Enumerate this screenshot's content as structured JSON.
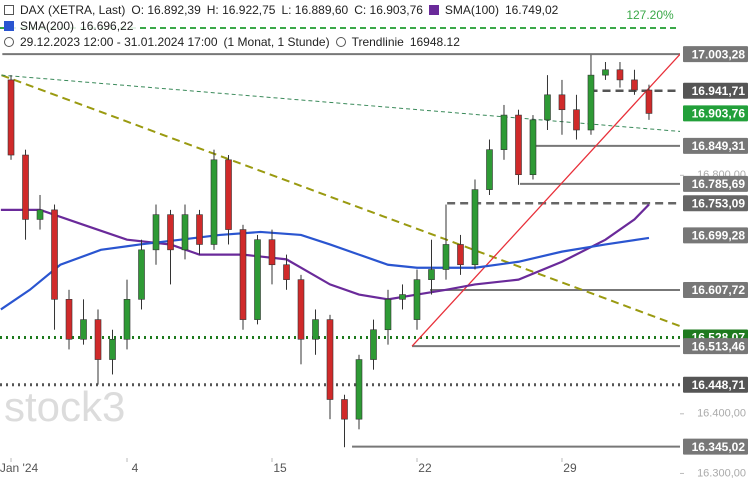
{
  "header": {
    "instrument": "DAX (XETRA, Last)",
    "open": "O: 16.892,39",
    "high": "H: 16.922,75",
    "low": "L: 16.889,60",
    "close": "C: 16.903,76",
    "sma100_name": "SMA(100)",
    "sma100_value": "16.749,02",
    "sma200_name": "SMA(200)",
    "sma200_value": "16.696,22",
    "range": "29.12.2023 12:00 - 31.01.2024 17:00",
    "interval": "(1 Monat, 1 Stunde)",
    "trend_name": "Trendlinie",
    "trend_value": "16948.12"
  },
  "watermark": "stock3",
  "chart_data": {
    "type": "candlestick",
    "x": [
      0,
      0.5,
      1,
      1.5,
      2,
      2.5,
      3,
      3.5,
      4,
      4.5,
      5,
      5.5,
      6,
      6.5,
      7,
      7.5,
      8,
      8.5,
      9,
      9.5,
      10,
      10.5,
      11,
      11.5,
      12,
      12.5,
      13,
      13.5,
      14,
      14.5,
      15,
      15.5,
      16,
      16.5,
      17,
      17.5,
      18,
      18.5,
      19,
      19.5,
      20,
      20.5,
      21,
      21.5,
      22
    ],
    "open": [
      16960,
      16834,
      16726,
      16742,
      16592,
      16525,
      16558,
      16491,
      16525,
      16592,
      16675,
      16734,
      16675,
      16734,
      16684,
      16826,
      16709,
      16558,
      16692,
      16650,
      16625,
      16525,
      16558,
      16424,
      16391,
      16491,
      16541,
      16592,
      16558,
      16625,
      16642,
      16684,
      16650,
      16776,
      16843,
      16901,
      16801,
      16893,
      16935,
      16910,
      16876,
      16968,
      16977,
      16960,
      16943
    ],
    "high": [
      16968,
      16843,
      16767,
      16751,
      16608,
      16592,
      16575,
      16541,
      16625,
      16692,
      16751,
      16742,
      16751,
      16742,
      16843,
      16834,
      16717,
      16700,
      16709,
      16667,
      16633,
      16575,
      16566,
      16432,
      16499,
      16558,
      16608,
      16617,
      16642,
      16692,
      16751,
      16700,
      16793,
      16860,
      16918,
      16910,
      16901,
      16968,
      16960,
      16935,
      17002,
      16990,
      16990,
      16977,
      16952
    ],
    "low": [
      16826,
      16692,
      16709,
      16541,
      16508,
      16516,
      16449,
      16466,
      16508,
      16575,
      16650,
      16617,
      16659,
      16667,
      16675,
      16684,
      16541,
      16550,
      16617,
      16608,
      16483,
      16499,
      16391,
      16344,
      16374,
      16474,
      16516,
      16575,
      16541,
      16600,
      16625,
      16633,
      16642,
      16767,
      16826,
      16784,
      16793,
      16876,
      16868,
      16860,
      16868,
      16960,
      16947,
      16935,
      16893
    ],
    "close": [
      16834,
      16726,
      16742,
      16592,
      16525,
      16558,
      16491,
      16525,
      16592,
      16675,
      16734,
      16675,
      16734,
      16684,
      16826,
      16709,
      16558,
      16692,
      16650,
      16625,
      16525,
      16558,
      16424,
      16391,
      16491,
      16541,
      16592,
      16600,
      16625,
      16642,
      16684,
      16650,
      16776,
      16843,
      16901,
      16801,
      16893,
      16935,
      16910,
      16876,
      16968,
      16977,
      16960,
      16943,
      16903.76
    ],
    "up_color": "#2e9a35",
    "down_color": "#d02a2a",
    "series": [
      {
        "name": "SMA(100)",
        "color": "#6a2a9a",
        "x": [
          -0.35,
          1,
          2.5,
          4,
          5.5,
          6.5,
          8,
          9.5,
          10,
          11,
          12,
          13,
          14,
          15,
          16,
          17.5,
          19,
          20.5,
          21.5,
          22
        ],
        "values": [
          16742,
          16742,
          16717,
          16692,
          16684,
          16667,
          16667,
          16659,
          16645,
          16617,
          16600,
          16592,
          16600,
          16608,
          16617,
          16625,
          16655,
          16692,
          16726,
          16751
        ]
      },
      {
        "name": "SMA(200)",
        "color": "#2a55d0",
        "x": [
          -0.35,
          0.65,
          1.7,
          3.1,
          4.45,
          5.85,
          7.2,
          8.6,
          10,
          11,
          12,
          13,
          14,
          15,
          16,
          17.5,
          19,
          20.5,
          22
        ],
        "values": [
          16575,
          16608,
          16650,
          16675,
          16684,
          16692,
          16700,
          16705,
          16700,
          16684,
          16667,
          16650,
          16645,
          16645,
          16645,
          16655,
          16672,
          16684,
          16695
        ]
      }
    ],
    "levels": [
      {
        "value": 17003.28,
        "label": "17.003,28",
        "x_start": -0.3,
        "color": "#777777",
        "dash": "solid"
      },
      {
        "value": 16941.71,
        "label": "16.941,71",
        "x_start": 19.95,
        "color": "#555555",
        "dash": "dashed"
      },
      {
        "value": 16903.76,
        "label": "16.903,76",
        "color": "#22a03a",
        "dash": "none"
      },
      {
        "value": 16849.31,
        "label": "16.849,31",
        "x_start": 18.07,
        "color": "#777777",
        "dash": "solid"
      },
      {
        "value": 16785.69,
        "label": "16.785,69",
        "x_start": 17.55,
        "color": "#777777",
        "dash": "solid"
      },
      {
        "value": 16753.09,
        "label": "16.753,09",
        "x_start": 15.04,
        "color": "#666666",
        "dash": "dashed"
      },
      {
        "value": 16699.28,
        "label": "16.699,28",
        "color": "#777777",
        "dash": "none"
      },
      {
        "value": 16607.72,
        "label": "16.607,72",
        "x_start": 14.45,
        "color": "#777777",
        "dash": "solid"
      },
      {
        "value": 16528.07,
        "label": "16.528,07",
        "x_start": -0.38,
        "color": "#1e7a1e",
        "dash": "dotted"
      },
      {
        "value": 16513.46,
        "label": "16.513,46",
        "x_start": 13.83,
        "color": "#777777",
        "dash": "solid"
      },
      {
        "value": 16448.71,
        "label": "16.448,71",
        "x_start": -0.38,
        "color": "#555555",
        "dash": "dotted"
      },
      {
        "value": 16345.02,
        "label": "16.345,02",
        "x_start": 11.76,
        "color": "#777777",
        "dash": "solid"
      }
    ],
    "fib_line": {
      "value": 17047,
      "label": "127.20%",
      "color": "#3aa848"
    },
    "trendlines": [
      {
        "x": [
          -0.33,
          23.41
        ],
        "values": [
          16968,
          16541
        ],
        "color": "#9a9a10",
        "dash": "dashed"
      },
      {
        "x": [
          13.83,
          24.79
        ],
        "values": [
          16513.46,
          17094
        ],
        "color": "#e8303a",
        "dash": "solid"
      },
      {
        "x": [
          -0.33,
          24.45
        ],
        "values": [
          16968,
          16868
        ],
        "color": "#3a8a5a",
        "dash": "thin"
      }
    ],
    "xlim": [
      -0.38,
      23.07
    ],
    "ylim": [
      16289,
      17094
    ],
    "xticks": [
      {
        "value": 0,
        "label": "Jan '24"
      },
      4,
      {
        "value": 9,
        "label": "15"
      },
      {
        "value": 14,
        "label": "22"
      },
      {
        "value": 19,
        "label": "29"
      }
    ],
    "yticks": [
      {
        "value": 16300,
        "label": "16.300,00"
      },
      {
        "value": 16400,
        "label": "16.400,00"
      },
      {
        "value": 16800,
        "label": "16.800,00"
      }
    ]
  }
}
